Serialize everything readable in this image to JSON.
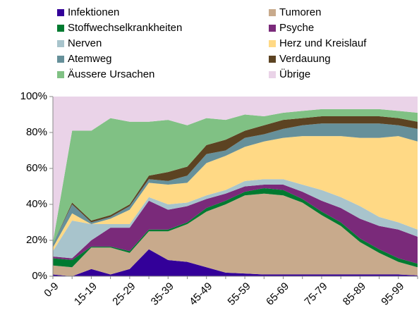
{
  "chart_data": {
    "type": "stacked_area",
    "categories": [
      "0-9",
      null,
      "15-19",
      null,
      "25-29",
      null,
      "35-39",
      null,
      "45-49",
      null,
      "55-59",
      null,
      "65-69",
      null,
      "75-79",
      null,
      "85-89",
      null,
      "95-99",
      null
    ],
    "ylim": [
      0,
      100
    ],
    "yticks": [
      {
        "value": 0,
        "label": "0%"
      },
      {
        "value": 20,
        "label": "20%"
      },
      {
        "value": 40,
        "label": "40%"
      },
      {
        "value": 60,
        "label": "60%"
      },
      {
        "value": 80,
        "label": "80%"
      },
      {
        "value": 100,
        "label": "100%"
      }
    ],
    "series": [
      {
        "name": "Infektionen",
        "color": "#330099",
        "values": [
          1,
          0,
          4,
          1,
          4,
          15,
          9,
          8,
          5,
          2,
          1.5,
          1,
          1,
          1,
          1,
          1,
          1,
          1,
          1,
          0.5
        ]
      },
      {
        "name": "Tumoren",
        "color": "#c8aa8c",
        "values": [
          5,
          5,
          12,
          15,
          9,
          10,
          16,
          21,
          31,
          38,
          43.5,
          45,
          44,
          40,
          33,
          27,
          18,
          12,
          7,
          4.5
        ]
      },
      {
        "name": "Stoffwechselkrankheiten",
        "color": "#007a30",
        "values": [
          4,
          4,
          0.5,
          0.5,
          1,
          1,
          1,
          1,
          2,
          2,
          2,
          3,
          3,
          2,
          2,
          2,
          2,
          2,
          2,
          2
        ]
      },
      {
        "name": "Psyche",
        "color": "#7a2a7a",
        "values": [
          1,
          1,
          3.5,
          10.5,
          13,
          16,
          11,
          9,
          5,
          4,
          3,
          2,
          3,
          4,
          6,
          8,
          11,
          13,
          16,
          15
        ]
      },
      {
        "name": "Nerven",
        "color": "#a8c4cc",
        "values": [
          3,
          21,
          9,
          2,
          2,
          2,
          3,
          2,
          2,
          2,
          3,
          3,
          3,
          4,
          6,
          6,
          7,
          5,
          4,
          4
        ]
      },
      {
        "name": "Herz und Kreislauf",
        "color": "#ffd985",
        "values": [
          2,
          4,
          0,
          3,
          8,
          8,
          11,
          11,
          18,
          19,
          19,
          21,
          23,
          27,
          30,
          34,
          38,
          44,
          48,
          49
        ]
      },
      {
        "name": "Atemweg",
        "color": "#66909a",
        "values": [
          2,
          5,
          1,
          1,
          2,
          2,
          2,
          4,
          5,
          3,
          5,
          4,
          5,
          6,
          7,
          7,
          8,
          8,
          6,
          7
        ]
      },
      {
        "name": "Verdauung",
        "color": "#5c4322",
        "values": [
          0,
          1,
          1,
          1,
          1,
          2,
          5,
          5,
          5,
          6,
          4,
          5,
          5,
          4,
          4,
          4,
          4,
          4,
          4,
          4
        ]
      },
      {
        "name": "Äussere Ursachen",
        "color": "#80c184",
        "values": [
          1,
          40,
          50,
          54,
          46,
          30,
          29,
          23,
          15,
          11,
          9,
          5,
          4,
          4,
          4,
          4,
          4,
          4,
          4,
          5
        ]
      },
      {
        "name": "Übrige",
        "color": "#ead3e8",
        "values": [
          81,
          19,
          19,
          12,
          14,
          14,
          13,
          16,
          12,
          13,
          10,
          11,
          9,
          8,
          7,
          7,
          7,
          7,
          8,
          9
        ]
      }
    ]
  }
}
